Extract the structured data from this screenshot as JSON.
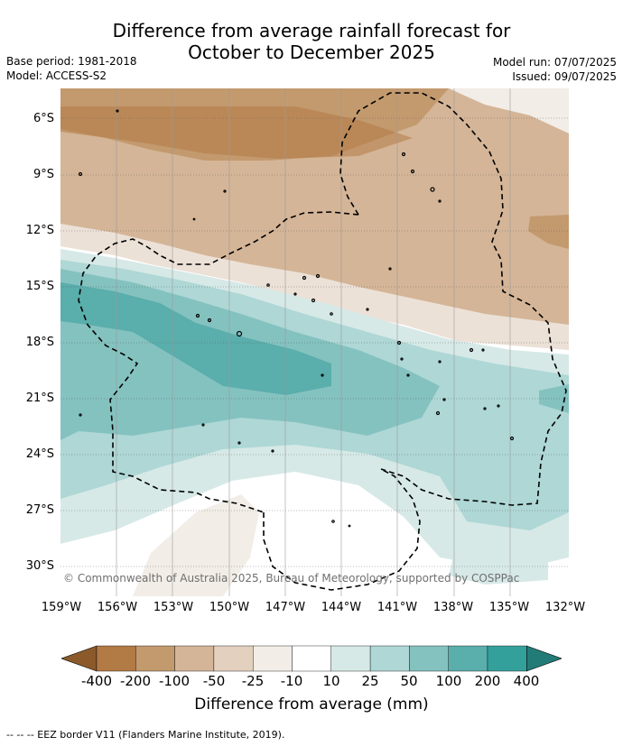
{
  "title_line1": "Difference from average rainfall forecast for",
  "title_line2": "October to December 2025",
  "base_period": "Base period: 1981-2018",
  "model": "Model: ACCESS-S2",
  "model_run": "Model run: 07/07/2025",
  "issued": "Issued: 09/07/2025",
  "lat_labels": [
    "6°S",
    "9°S",
    "12°S",
    "15°S",
    "18°S",
    "21°S",
    "24°S",
    "27°S",
    "30°S"
  ],
  "lon_labels": [
    "159°W",
    "156°W",
    "153°W",
    "150°W",
    "147°W",
    "144°W",
    "141°W",
    "138°W",
    "135°W",
    "132°W"
  ],
  "copyright": "© Commonwealth of Australia 2025, Bureau of Meteorology, supported by COSPPac",
  "legend": {
    "title": "Difference from average (mm)",
    "ticks": [
      "-400",
      "-200",
      "-100",
      "-50",
      "-25",
      "-10",
      "10",
      "25",
      "50",
      "100",
      "200",
      "400"
    ],
    "colors": [
      "#8b5a2b",
      "#b27a45",
      "#c39a6e",
      "#d4b597",
      "#e3d0bf",
      "#f2ede7",
      "#ffffff",
      "#d6e9e7",
      "#aed7d5",
      "#84c2c0",
      "#5aaeac",
      "#34a09c",
      "#237b77"
    ]
  },
  "footnote": "--  --  -- EEZ border V11 (Flanders Marine Institute, 2019)."
}
